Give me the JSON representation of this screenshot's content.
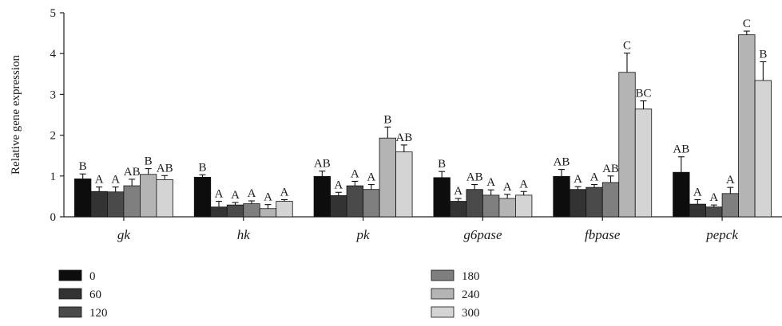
{
  "chart_data": {
    "type": "bar",
    "ylabel": "Relative gene expression",
    "ylim": [
      0,
      5
    ],
    "yticks": [
      0,
      1,
      2,
      3,
      4,
      5
    ],
    "grid": false,
    "legend_position": "bottom",
    "categories": [
      "gk",
      "hk",
      "pk",
      "g6pase",
      "fbpase",
      "pepck"
    ],
    "series": [
      {
        "name": "0",
        "color": "#0d0d0d",
        "values": [
          0.93,
          0.97,
          0.99,
          0.96,
          0.99,
          1.09
        ],
        "errors": [
          0.12,
          0.06,
          0.13,
          0.15,
          0.17,
          0.38
        ],
        "labels": [
          "B",
          "B",
          "AB",
          "B",
          "AB",
          "AB"
        ]
      },
      {
        "name": "60",
        "color": "#333333",
        "values": [
          0.62,
          0.24,
          0.52,
          0.38,
          0.67,
          0.31
        ],
        "errors": [
          0.11,
          0.14,
          0.08,
          0.07,
          0.07,
          0.11
        ],
        "labels": [
          "A",
          "A",
          "A",
          "A",
          "A",
          "A"
        ]
      },
      {
        "name": "120",
        "color": "#4a4a4a",
        "values": [
          0.61,
          0.29,
          0.76,
          0.67,
          0.72,
          0.24
        ],
        "errors": [
          0.12,
          0.06,
          0.11,
          0.12,
          0.07,
          0.05
        ],
        "labels": [
          "A",
          "A",
          "A",
          "AB",
          "A",
          "A"
        ]
      },
      {
        "name": "180",
        "color": "#7f7f7f",
        "values": [
          0.76,
          0.32,
          0.67,
          0.53,
          0.84,
          0.57
        ],
        "errors": [
          0.16,
          0.07,
          0.12,
          0.13,
          0.16,
          0.15
        ],
        "labels": [
          "AB",
          "A",
          "A",
          "A",
          "AB",
          "A"
        ]
      },
      {
        "name": "240",
        "color": "#b4b4b4",
        "values": [
          1.04,
          0.2,
          1.93,
          0.45,
          3.54,
          4.46
        ],
        "errors": [
          0.14,
          0.1,
          0.27,
          0.1,
          0.47,
          0.09
        ],
        "labels": [
          "B",
          "A",
          "B",
          "A",
          "C",
          "C"
        ]
      },
      {
        "name": "300",
        "color": "#d4d4d4",
        "values": [
          0.91,
          0.38,
          1.59,
          0.53,
          2.64,
          3.34
        ],
        "errors": [
          0.1,
          0.04,
          0.17,
          0.09,
          0.2,
          0.46
        ],
        "labels": [
          "AB",
          "A",
          "AB",
          "A",
          "BC",
          "B"
        ]
      }
    ]
  }
}
